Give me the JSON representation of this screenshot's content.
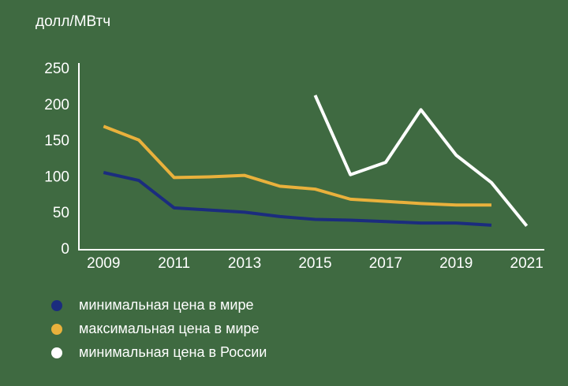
{
  "chart_data": {
    "type": "line",
    "y_label": "долл/МВтч",
    "x": [
      2009,
      2010,
      2011,
      2012,
      2013,
      2014,
      2015,
      2016,
      2017,
      2018,
      2019,
      2020,
      2021
    ],
    "series": [
      {
        "name": "минимальная цена в мире",
        "color": "#1b2c7e",
        "values": [
          107,
          96,
          58,
          55,
          52,
          46,
          42,
          41,
          39,
          37,
          37,
          34,
          null
        ]
      },
      {
        "name": "максимальная цена в мире",
        "color": "#e9b13c",
        "values": [
          171,
          152,
          100,
          101,
          103,
          88,
          84,
          70,
          67,
          64,
          62,
          62,
          null
        ]
      },
      {
        "name": "минимальная цена в России",
        "color": "#ffffff",
        "values": [
          null,
          null,
          null,
          null,
          null,
          null,
          214,
          104,
          121,
          194,
          131,
          93,
          33
        ]
      }
    ],
    "xlim": [
      2008.3,
      2021.5
    ],
    "ylim": [
      0,
      250
    ],
    "xticks": [
      2009,
      2011,
      2013,
      2015,
      2017,
      2019,
      2021
    ],
    "yticks": [
      0,
      50,
      100,
      150,
      200,
      250
    ]
  }
}
